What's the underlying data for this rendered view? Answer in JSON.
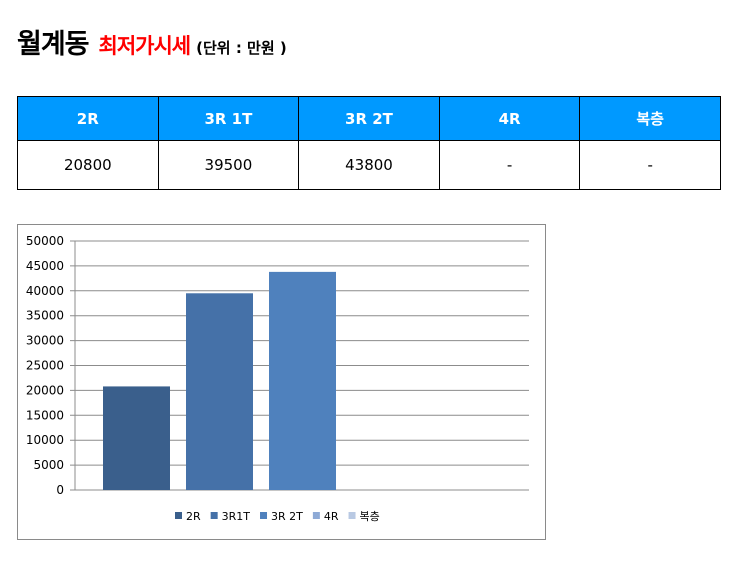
{
  "header": {
    "area": "월계동",
    "subtitle": "최저가시세",
    "unit": "(단위 : 만원 )"
  },
  "table": {
    "headers": [
      "2R",
      "3R 1T",
      "3R 2T",
      "4R",
      "복층"
    ],
    "row": [
      "20800",
      "39500",
      "43800",
      "-",
      "-"
    ]
  },
  "colors": {
    "header_bg": "#0099ff",
    "title_red": "#ff0000"
  },
  "chart_data": {
    "type": "bar",
    "categories": [
      ""
    ],
    "series": [
      {
        "name": "2R",
        "values": [
          20800
        ],
        "color": "#3a5f8c"
      },
      {
        "name": "3R1T",
        "values": [
          39500
        ],
        "color": "#4571a8"
      },
      {
        "name": "3R 2T",
        "values": [
          43800
        ],
        "color": "#4f81bd"
      },
      {
        "name": "4R",
        "values": [
          null
        ],
        "color": "#8eaad6"
      },
      {
        "name": "복층",
        "values": [
          null
        ],
        "color": "#b9c9e3"
      }
    ],
    "yticks": [
      0,
      5000,
      10000,
      15000,
      20000,
      25000,
      30000,
      35000,
      40000,
      45000,
      50000
    ],
    "ylim": [
      0,
      50000
    ],
    "grid": true,
    "legend": "bottom"
  }
}
